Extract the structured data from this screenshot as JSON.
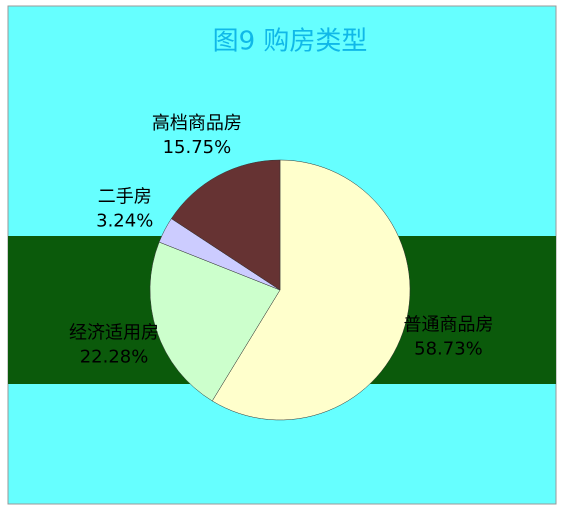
{
  "chart_data": {
    "type": "pie",
    "title": "图9  购房类型",
    "categories": [
      "普通商品房",
      "经济适用房",
      "二手房",
      "高档商品房"
    ],
    "values": [
      58.73,
      22.28,
      3.24,
      15.75
    ],
    "value_labels": [
      "58.73%",
      "22.28%",
      "3.24%",
      "15.75%"
    ],
    "colors": [
      "#ffffcc",
      "#ccffcc",
      "#ccccff",
      "#663333"
    ]
  }
}
